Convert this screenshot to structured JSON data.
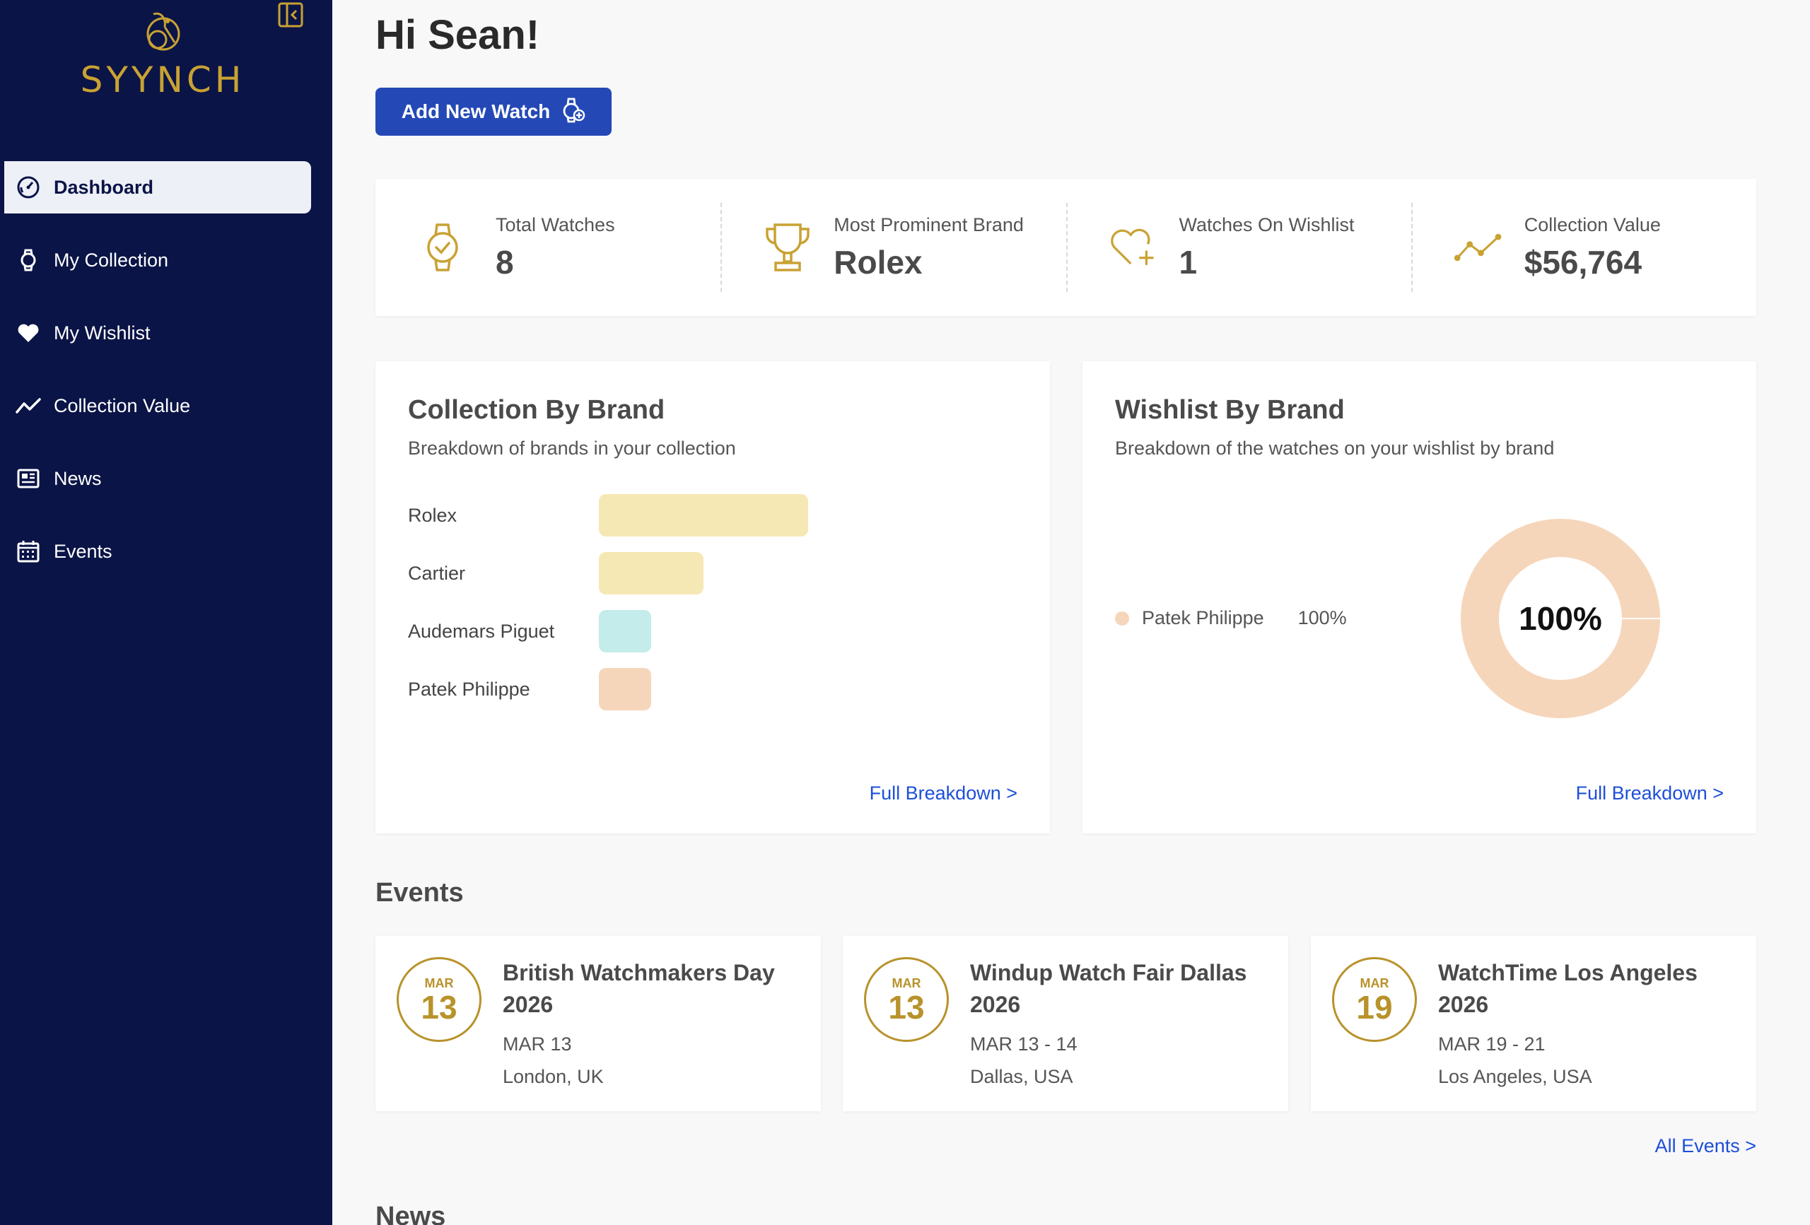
{
  "app": {
    "logo_text": "SYYNCH"
  },
  "sidebar": {
    "items": [
      {
        "label": "Dashboard",
        "icon": "gauge-icon",
        "active": true
      },
      {
        "label": "My Collection",
        "icon": "watch-icon"
      },
      {
        "label": "My Wishlist",
        "icon": "heart-icon"
      },
      {
        "label": "Collection Value",
        "icon": "trend-icon"
      },
      {
        "label": "News",
        "icon": "news-icon"
      },
      {
        "label": "Events",
        "icon": "calendar-icon"
      }
    ]
  },
  "header": {
    "greeting": "Hi Sean!",
    "add_button_label": "Add New Watch"
  },
  "stats": [
    {
      "label": "Total Watches",
      "value": "8",
      "icon": "watch-check-icon"
    },
    {
      "label": "Most Prominent Brand",
      "value": "Rolex",
      "icon": "trophy-icon"
    },
    {
      "label": "Watches On Wishlist",
      "value": "1",
      "icon": "heart-plus-icon"
    },
    {
      "label": "Collection Value",
      "value": "$56,764",
      "icon": "trend-icon"
    }
  ],
  "collection_card": {
    "title": "Collection By Brand",
    "subtitle": "Breakdown of brands in your collection",
    "link": "Full Breakdown >"
  },
  "wishlist_card": {
    "title": "Wishlist By Brand",
    "subtitle": "Breakdown of the watches on your wishlist by brand",
    "link": "Full Breakdown >",
    "center_label": "100%"
  },
  "chart_data": [
    {
      "type": "bar",
      "orientation": "horizontal",
      "categories": [
        "Rolex",
        "Cartier",
        "Audemars Piguet",
        "Patek Philippe"
      ],
      "values": [
        4,
        2,
        1,
        1
      ],
      "colors": [
        "#f6e8b4",
        "#f6e8b4",
        "#c3ecea",
        "#f6d6bb"
      ]
    },
    {
      "type": "pie",
      "donut": true,
      "categories": [
        "Patek Philippe"
      ],
      "values": [
        100
      ],
      "legend_values": [
        "100%"
      ],
      "colors": [
        "#f6d6bb"
      ]
    }
  ],
  "events_section": {
    "title": "Events",
    "all_link": "All Events >"
  },
  "events": [
    {
      "month": "MAR",
      "day": "13",
      "title": "British Watchmakers Day 2026",
      "dates": "MAR 13",
      "location": "London, UK"
    },
    {
      "month": "MAR",
      "day": "13",
      "title": "Windup Watch Fair Dallas 2026",
      "dates": "MAR 13 - 14",
      "location": "Dallas, USA"
    },
    {
      "month": "MAR",
      "day": "19",
      "title": "WatchTime Los Angeles 2026",
      "dates": "MAR 19 - 21",
      "location": "Los Angeles, USA"
    }
  ],
  "news_section": {
    "title": "News"
  },
  "colors": {
    "sidebar_bg": "#0a1446",
    "accent_gold": "#c9a233",
    "primary_button": "#2449b7",
    "link": "#1d4fd8"
  }
}
